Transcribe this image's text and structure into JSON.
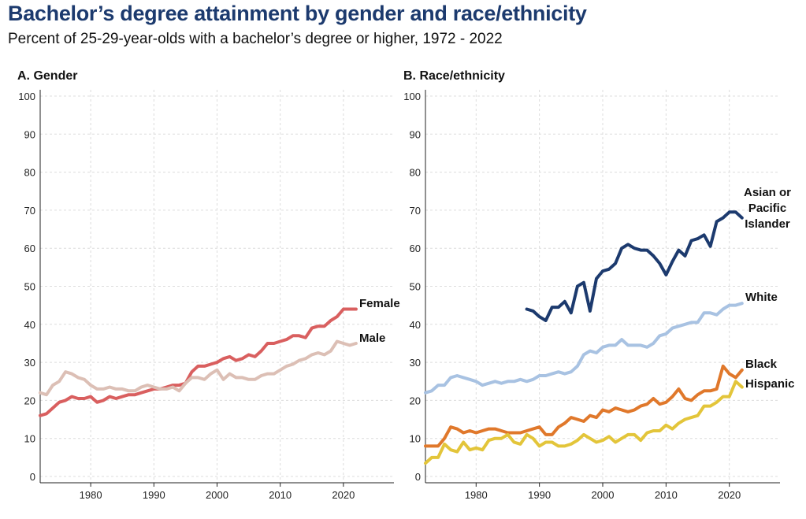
{
  "title": "Bachelor’s degree attainment by gender and race/ethnicity",
  "subtitle": "Percent of 25-29-year-olds with a bachelor’s degree or higher, 1972 - 2022",
  "chart_data": [
    {
      "type": "line",
      "panel_title": "A. Gender",
      "xlim": [
        1972,
        2028
      ],
      "ylim": [
        0,
        100
      ],
      "yticks": [
        0,
        10,
        20,
        30,
        40,
        50,
        60,
        70,
        80,
        90,
        100
      ],
      "xticks": [
        1980,
        1990,
        2000,
        2010,
        2020
      ],
      "grid": true,
      "series": [
        {
          "name": "Female",
          "color": "#d95f5f",
          "x": [
            1972,
            1973,
            1974,
            1975,
            1976,
            1977,
            1978,
            1979,
            1980,
            1981,
            1982,
            1983,
            1984,
            1985,
            1986,
            1987,
            1988,
            1989,
            1990,
            1991,
            1992,
            1993,
            1994,
            1995,
            1996,
            1997,
            1998,
            1999,
            2000,
            2001,
            2002,
            2003,
            2004,
            2005,
            2006,
            2007,
            2008,
            2009,
            2010,
            2011,
            2012,
            2013,
            2014,
            2015,
            2016,
            2017,
            2018,
            2019,
            2020,
            2021,
            2022
          ],
          "values": [
            16,
            16.5,
            18,
            19.5,
            20,
            21,
            20.5,
            20.5,
            21,
            19.5,
            20,
            21,
            20.5,
            21,
            21.5,
            21.5,
            22,
            22.5,
            23,
            23,
            23.5,
            24,
            24,
            24.5,
            27.5,
            29,
            29,
            29.5,
            30,
            31,
            31.5,
            30.5,
            31,
            32,
            31.5,
            33,
            35,
            35,
            35.5,
            36,
            37,
            37,
            36.5,
            39,
            39.5,
            39.5,
            41,
            42,
            44,
            44,
            44
          ]
        },
        {
          "name": "Male",
          "color": "#dcbfb5",
          "x": [
            1972,
            1973,
            1974,
            1975,
            1976,
            1977,
            1978,
            1979,
            1980,
            1981,
            1982,
            1983,
            1984,
            1985,
            1986,
            1987,
            1988,
            1989,
            1990,
            1991,
            1992,
            1993,
            1994,
            1995,
            1996,
            1997,
            1998,
            1999,
            2000,
            2001,
            2002,
            2003,
            2004,
            2005,
            2006,
            2007,
            2008,
            2009,
            2010,
            2011,
            2012,
            2013,
            2014,
            2015,
            2016,
            2017,
            2018,
            2019,
            2020,
            2021,
            2022
          ],
          "values": [
            22,
            21.5,
            24,
            25,
            27.5,
            27,
            26,
            25.5,
            24,
            23,
            23,
            23.5,
            23,
            23,
            22.5,
            22.5,
            23.5,
            24,
            23.5,
            23,
            23,
            23.5,
            22.5,
            24.5,
            26,
            26,
            25.5,
            27,
            28,
            25.5,
            27,
            26,
            26,
            25.5,
            25.5,
            26.5,
            27,
            27,
            28,
            29,
            29.5,
            30.5,
            31,
            32,
            32.5,
            32,
            33,
            35.5,
            35,
            34.5,
            35
          ]
        }
      ]
    },
    {
      "type": "line",
      "panel_title": "B. Race/ethnicity",
      "xlim": [
        1972,
        2028
      ],
      "ylim": [
        0,
        100
      ],
      "yticks": [
        0,
        10,
        20,
        30,
        40,
        50,
        60,
        70,
        80,
        90,
        100
      ],
      "xticks": [
        1980,
        1990,
        2000,
        2010,
        2020
      ],
      "grid": true,
      "series": [
        {
          "name": "Asian or Pacific Islander",
          "label_lines": [
            "Asian or",
            "Pacific",
            "Islander"
          ],
          "color": "#1c3a6e",
          "x": [
            1988,
            1989,
            1990,
            1991,
            1992,
            1993,
            1994,
            1995,
            1996,
            1997,
            1998,
            1999,
            2000,
            2001,
            2002,
            2003,
            2004,
            2005,
            2006,
            2007,
            2008,
            2009,
            2010,
            2011,
            2012,
            2013,
            2014,
            2015,
            2016,
            2017,
            2018,
            2019,
            2020,
            2021,
            2022
          ],
          "values": [
            44,
            43.5,
            42,
            41,
            44.5,
            44.5,
            46,
            43,
            50,
            51,
            43.5,
            52,
            54,
            54.5,
            56,
            60,
            61,
            60,
            59.5,
            59.5,
            58,
            56,
            53,
            56.5,
            59.5,
            58,
            62,
            62.5,
            63.5,
            60.5,
            67,
            68,
            69.5,
            69.5,
            68
          ]
        },
        {
          "name": "White",
          "label_lines": [
            "White"
          ],
          "color": "#a8c2e2",
          "x": [
            1972,
            1973,
            1974,
            1975,
            1976,
            1977,
            1978,
            1979,
            1980,
            1981,
            1982,
            1983,
            1984,
            1985,
            1986,
            1987,
            1988,
            1989,
            1990,
            1991,
            1992,
            1993,
            1994,
            1995,
            1996,
            1997,
            1998,
            1999,
            2000,
            2001,
            2002,
            2003,
            2004,
            2005,
            2006,
            2007,
            2008,
            2009,
            2010,
            2011,
            2012,
            2013,
            2014,
            2015,
            2016,
            2017,
            2018,
            2019,
            2020,
            2021,
            2022
          ],
          "values": [
            22,
            22.5,
            24,
            24,
            26,
            26.5,
            26,
            25.5,
            25,
            24,
            24.5,
            25,
            24.5,
            25,
            25,
            25.5,
            25,
            25.5,
            26.5,
            26.5,
            27,
            27.5,
            27,
            27.5,
            29,
            32,
            33,
            32.5,
            34,
            34.5,
            34.5,
            36,
            34.5,
            34.5,
            34.5,
            34,
            35,
            37,
            37.5,
            39,
            39.5,
            40,
            40.5,
            40.5,
            43,
            43,
            42.5,
            44,
            45,
            45,
            45.5
          ]
        },
        {
          "name": "Black",
          "label_lines": [
            "Black"
          ],
          "color": "#e0782b",
          "x": [
            1972,
            1973,
            1974,
            1975,
            1976,
            1977,
            1978,
            1979,
            1980,
            1981,
            1982,
            1983,
            1984,
            1985,
            1986,
            1987,
            1988,
            1989,
            1990,
            1991,
            1992,
            1993,
            1994,
            1995,
            1996,
            1997,
            1998,
            1999,
            2000,
            2001,
            2002,
            2003,
            2004,
            2005,
            2006,
            2007,
            2008,
            2009,
            2010,
            2011,
            2012,
            2013,
            2014,
            2015,
            2016,
            2017,
            2018,
            2019,
            2020,
            2021,
            2022
          ],
          "values": [
            8,
            8,
            8,
            10,
            13,
            12.5,
            11.5,
            12,
            11.5,
            12,
            12.5,
            12.5,
            12,
            11.5,
            11.5,
            11.5,
            12,
            12.5,
            13,
            11,
            11,
            13,
            14,
            15.5,
            15,
            14.5,
            16,
            15.5,
            17.5,
            17,
            18,
            17.5,
            17,
            17.5,
            18.5,
            19,
            20.5,
            19,
            19.5,
            21,
            23,
            20.5,
            20,
            21.5,
            22.5,
            22.5,
            23,
            29,
            27,
            26,
            28
          ]
        },
        {
          "name": "Hispanic",
          "label_lines": [
            "Hispanic"
          ],
          "color": "#e3c53a",
          "x": [
            1972,
            1973,
            1974,
            1975,
            1976,
            1977,
            1978,
            1979,
            1980,
            1981,
            1982,
            1983,
            1984,
            1985,
            1986,
            1987,
            1988,
            1989,
            1990,
            1991,
            1992,
            1993,
            1994,
            1995,
            1996,
            1997,
            1998,
            1999,
            2000,
            2001,
            2002,
            2003,
            2004,
            2005,
            2006,
            2007,
            2008,
            2009,
            2010,
            2011,
            2012,
            2013,
            2014,
            2015,
            2016,
            2017,
            2018,
            2019,
            2020,
            2021,
            2022
          ],
          "values": [
            3.5,
            5,
            5,
            8.5,
            7,
            6.5,
            9,
            7,
            7.5,
            7,
            9.5,
            10,
            10,
            11,
            9,
            8.5,
            11,
            10,
            8,
            9,
            9,
            8,
            8,
            8.5,
            9.5,
            11,
            10,
            9,
            9.5,
            10.5,
            9,
            10,
            11,
            11,
            9.5,
            11.5,
            12,
            12,
            13.5,
            12.5,
            14,
            15,
            15.5,
            16,
            18.5,
            18.5,
            19.5,
            21,
            21,
            25,
            23.5
          ]
        }
      ]
    }
  ]
}
